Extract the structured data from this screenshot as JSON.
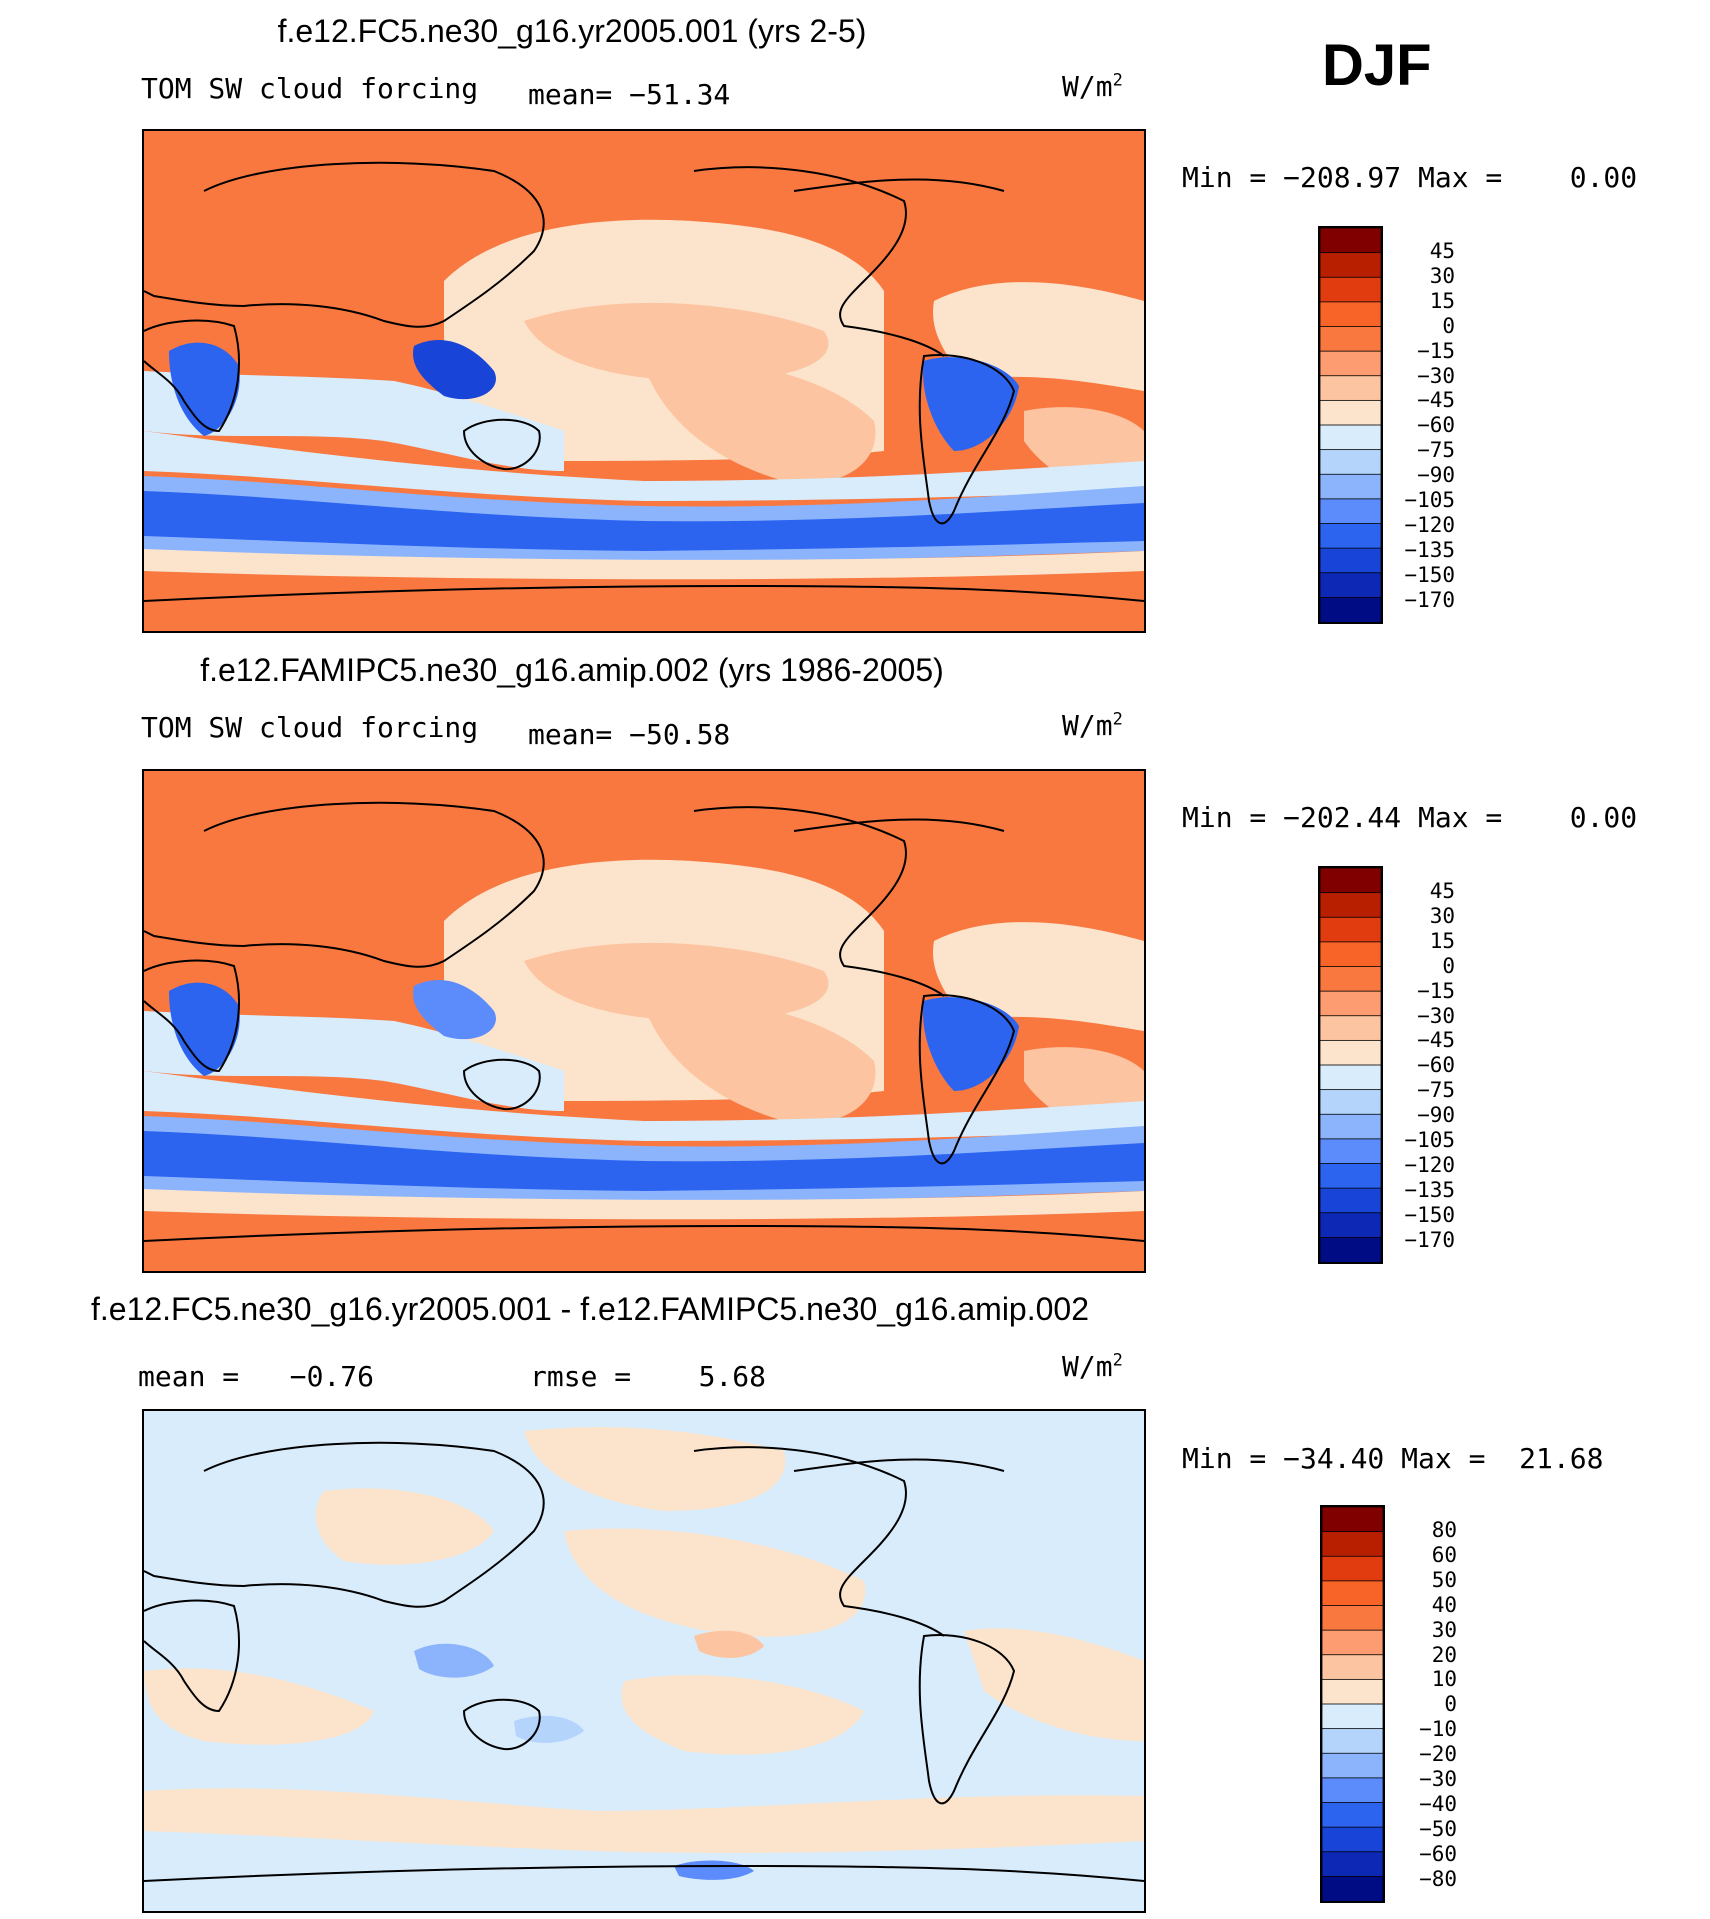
{
  "season": "DJF",
  "panels": [
    {
      "title": "f.e12.FC5.ne30_g16.yr2005.001 (yrs 2-5)",
      "left_label": "TOM SW cloud forcing",
      "stat_label": "mean= −51.34",
      "units_base": "W/m",
      "units_exp": "2",
      "minmax": "Min = −208.97 Max =    0.00",
      "colorbar_labels": [
        "45",
        "30",
        "15",
        "0",
        "−15",
        "−30",
        "−45",
        "−60",
        "−75",
        "−90",
        "−105",
        "−120",
        "−135",
        "−150",
        "−170"
      ],
      "colorbar_colors": [
        "#800000",
        "#b81e00",
        "#e03c10",
        "#f86428",
        "#f87840",
        "#fc9c70",
        "#fcc4a0",
        "#fce4cc",
        "#d8ecfc",
        "#b4d4fc",
        "#8cb4fc",
        "#5c8cfc",
        "#2c64f0",
        "#1844d8",
        "#0c28b4",
        "#000c84"
      ]
    },
    {
      "title": "f.e12.FAMIPC5.ne30_g16.amip.002 (yrs 1986-2005)",
      "left_label": "TOM SW cloud forcing",
      "stat_label": "mean= −50.58",
      "units_base": "W/m",
      "units_exp": "2",
      "minmax": "Min = −202.44 Max =    0.00",
      "colorbar_labels": [
        "45",
        "30",
        "15",
        "0",
        "−15",
        "−30",
        "−45",
        "−60",
        "−75",
        "−90",
        "−105",
        "−120",
        "−135",
        "−150",
        "−170"
      ],
      "colorbar_colors": [
        "#800000",
        "#b81e00",
        "#e03c10",
        "#f86428",
        "#f87840",
        "#fc9c70",
        "#fcc4a0",
        "#fce4cc",
        "#d8ecfc",
        "#b4d4fc",
        "#8cb4fc",
        "#5c8cfc",
        "#2c64f0",
        "#1844d8",
        "#0c28b4",
        "#000c84"
      ]
    },
    {
      "title": "f.e12.FC5.ne30_g16.yr2005.001 - f.e12.FAMIPC5.ne30_g16.amip.002",
      "left_label": "mean =   −0.76",
      "stat_label": "rmse =    5.68",
      "units_base": "W/m",
      "units_exp": "2",
      "minmax": "Min = −34.40 Max =  21.68",
      "colorbar_labels": [
        "80",
        "60",
        "50",
        "40",
        "30",
        "20",
        "10",
        "0",
        "−10",
        "−20",
        "−30",
        "−40",
        "−50",
        "−60",
        "−80"
      ],
      "colorbar_colors": [
        "#800000",
        "#b81e00",
        "#e03c10",
        "#f86428",
        "#f87840",
        "#fc9c70",
        "#fcc4a0",
        "#fce4cc",
        "#d8ecfc",
        "#b4d4fc",
        "#8cb4fc",
        "#5c8cfc",
        "#2c64f0",
        "#1844d8",
        "#0c28b4",
        "#000c84"
      ]
    }
  ],
  "map_colors": {
    "land_warm": "#f87840",
    "ocean_light": "#fcc4a0",
    "ocean_pale": "#fce4cc",
    "cool_light": "#d8ecfc",
    "cool_mid": "#8cb4fc",
    "cool_deep": "#2c64f0",
    "cool_deeper": "#1844d8",
    "diff_base": "#fce4cc",
    "diff_cool": "#d8ecfc",
    "diff_cool2": "#b4d4fc",
    "diff_warm": "#fcc4a0"
  }
}
